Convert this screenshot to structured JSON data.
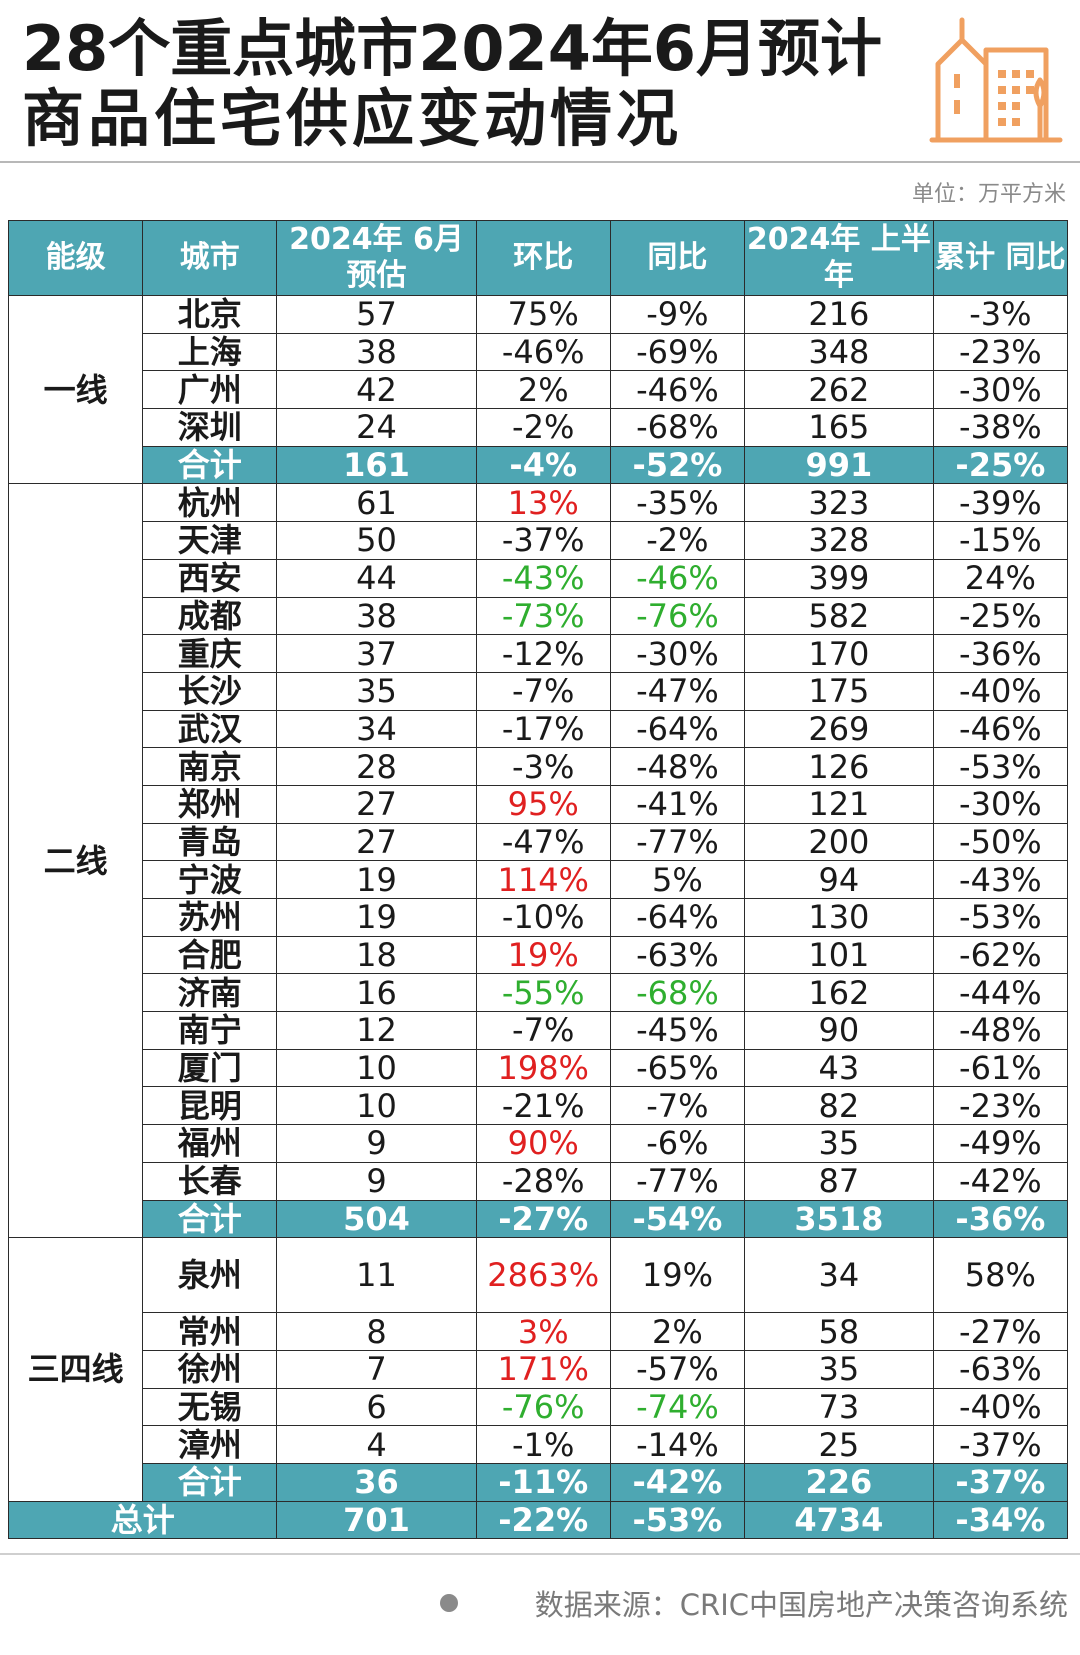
{
  "title": {
    "line1": "28个重点城市2024年6月预计",
    "line2": "商品住宅供应变动情况"
  },
  "icon": "building-icon",
  "unit_label": "单位：万平方米",
  "colors": {
    "header_bg": "#4ea6b3",
    "positive": "#e02020",
    "negative": "#2fae2f"
  },
  "table": {
    "headers": [
      "能级",
      "城市",
      "2024年 6月预估",
      "环比",
      "同比",
      "2024年 上半年",
      "累计 同比"
    ],
    "groups": [
      {
        "tier": "一线",
        "rows": [
          {
            "city": "北京",
            "est": "57",
            "mom": "75%",
            "yoy": "-9%",
            "h1": "216",
            "cum": "-3%"
          },
          {
            "city": "上海",
            "est": "38",
            "mom": "-46%",
            "yoy": "-69%",
            "h1": "348",
            "cum": "-23%"
          },
          {
            "city": "广州",
            "est": "42",
            "mom": "2%",
            "yoy": "-46%",
            "h1": "262",
            "cum": "-30%"
          },
          {
            "city": "深圳",
            "est": "24",
            "mom": "-2%",
            "yoy": "-68%",
            "h1": "165",
            "cum": "-38%"
          }
        ],
        "subtotal": {
          "label": "合计",
          "est": "161",
          "mom": "-4%",
          "yoy": "-52%",
          "h1": "991",
          "cum": "-25%"
        }
      },
      {
        "tier": "二线",
        "rows": [
          {
            "city": "杭州",
            "est": "61",
            "mom": "13%",
            "mom_color": "up",
            "yoy": "-35%",
            "h1": "323",
            "cum": "-39%"
          },
          {
            "city": "天津",
            "est": "50",
            "mom": "-37%",
            "yoy": "-2%",
            "h1": "328",
            "cum": "-15%"
          },
          {
            "city": "西安",
            "est": "44",
            "mom": "-43%",
            "mom_color": "down",
            "yoy": "-46%",
            "yoy_color": "down",
            "h1": "399",
            "cum": "24%"
          },
          {
            "city": "成都",
            "est": "38",
            "mom": "-73%",
            "mom_color": "down",
            "yoy": "-76%",
            "yoy_color": "down",
            "h1": "582",
            "cum": "-25%"
          },
          {
            "city": "重庆",
            "est": "37",
            "mom": "-12%",
            "yoy": "-30%",
            "h1": "170",
            "cum": "-36%"
          },
          {
            "city": "长沙",
            "est": "35",
            "mom": "-7%",
            "yoy": "-47%",
            "h1": "175",
            "cum": "-40%"
          },
          {
            "city": "武汉",
            "est": "34",
            "mom": "-17%",
            "yoy": "-64%",
            "h1": "269",
            "cum": "-46%"
          },
          {
            "city": "南京",
            "est": "28",
            "mom": "-3%",
            "yoy": "-48%",
            "h1": "126",
            "cum": "-53%"
          },
          {
            "city": "郑州",
            "est": "27",
            "mom": "95%",
            "mom_color": "up",
            "yoy": "-41%",
            "h1": "121",
            "cum": "-30%"
          },
          {
            "city": "青岛",
            "est": "27",
            "mom": "-47%",
            "yoy": "-77%",
            "h1": "200",
            "cum": "-50%"
          },
          {
            "city": "宁波",
            "est": "19",
            "mom": "114%",
            "mom_color": "up",
            "yoy": "5%",
            "h1": "94",
            "cum": "-43%"
          },
          {
            "city": "苏州",
            "est": "19",
            "mom": "-10%",
            "yoy": "-64%",
            "h1": "130",
            "cum": "-53%"
          },
          {
            "city": "合肥",
            "est": "18",
            "mom": "19%",
            "mom_color": "up",
            "yoy": "-63%",
            "h1": "101",
            "cum": "-62%"
          },
          {
            "city": "济南",
            "est": "16",
            "mom": "-55%",
            "mom_color": "down",
            "yoy": "-68%",
            "yoy_color": "down",
            "h1": "162",
            "cum": "-44%"
          },
          {
            "city": "南宁",
            "est": "12",
            "mom": "-7%",
            "yoy": "-45%",
            "h1": "90",
            "cum": "-48%"
          },
          {
            "city": "厦门",
            "est": "10",
            "mom": "198%",
            "mom_color": "up",
            "yoy": "-65%",
            "h1": "43",
            "cum": "-61%"
          },
          {
            "city": "昆明",
            "est": "10",
            "mom": "-21%",
            "yoy": "-7%",
            "h1": "82",
            "cum": "-23%"
          },
          {
            "city": "福州",
            "est": "9",
            "mom": "90%",
            "mom_color": "up",
            "yoy": "-6%",
            "h1": "35",
            "cum": "-49%"
          },
          {
            "city": "长春",
            "est": "9",
            "mom": "-28%",
            "yoy": "-77%",
            "h1": "87",
            "cum": "-42%"
          }
        ],
        "subtotal": {
          "label": "合计",
          "est": "504",
          "mom": "-27%",
          "yoy": "-54%",
          "h1": "3518",
          "cum": "-36%"
        }
      },
      {
        "tier": "三四线",
        "rows": [
          {
            "city": "泉州",
            "est": "11",
            "mom": "2863%",
            "mom_color": "up",
            "yoy": "19%",
            "h1": "34",
            "cum": "58%",
            "tall": true
          },
          {
            "city": "常州",
            "est": "8",
            "mom": "3%",
            "mom_color": "up",
            "yoy": "2%",
            "h1": "58",
            "cum": "-27%"
          },
          {
            "city": "徐州",
            "est": "7",
            "mom": "171%",
            "mom_color": "up",
            "yoy": "-57%",
            "h1": "35",
            "cum": "-63%"
          },
          {
            "city": "无锡",
            "est": "6",
            "mom": "-76%",
            "mom_color": "down",
            "yoy": "-74%",
            "yoy_color": "down",
            "h1": "73",
            "cum": "-40%"
          },
          {
            "city": "漳州",
            "est": "4",
            "mom": "-1%",
            "yoy": "-14%",
            "h1": "25",
            "cum": "-37%"
          }
        ],
        "subtotal": {
          "label": "合计",
          "est": "36",
          "mom": "-11%",
          "yoy": "-42%",
          "h1": "226",
          "cum": "-37%"
        }
      }
    ],
    "total": {
      "label": "总计",
      "est": "701",
      "mom": "-22%",
      "yoy": "-53%",
      "h1": "4734",
      "cum": "-34%"
    }
  },
  "source": "数据来源：CRIC中国房地产决策咨询系统"
}
